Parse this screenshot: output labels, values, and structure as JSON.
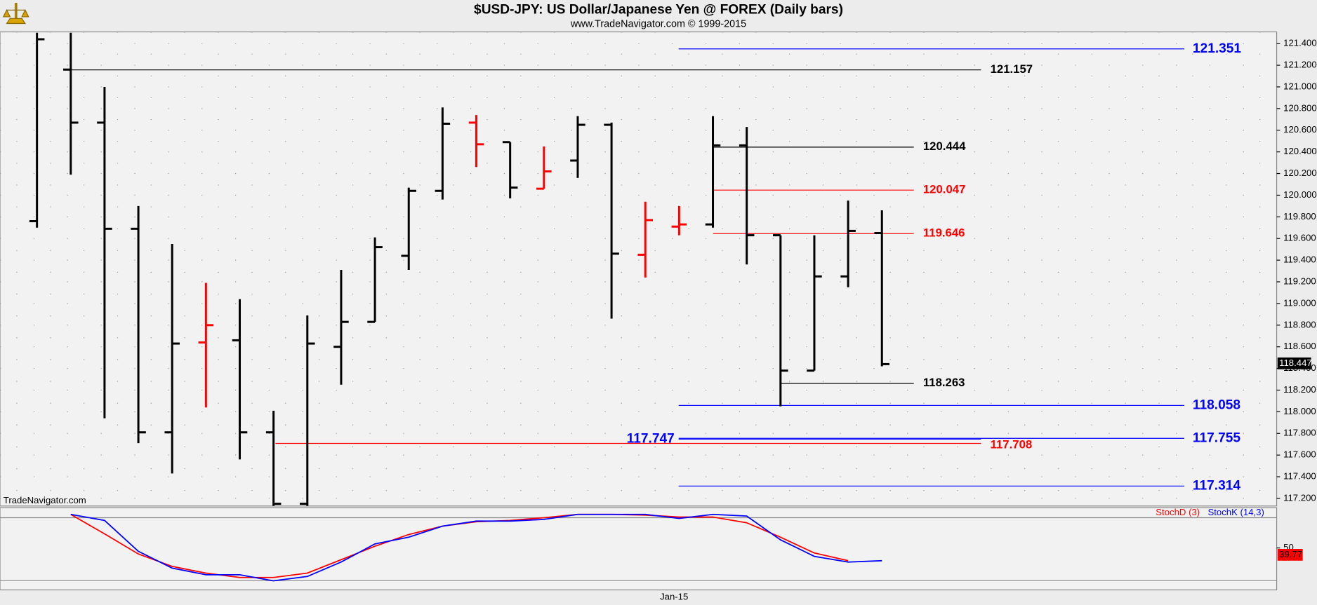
{
  "chart_data": {
    "type": "ohlc",
    "title": "$USD-JPY:  US Dollar/Japanese Yen @ FOREX  (Daily bars)",
    "subtitle": "www.TradeNavigator.com © 1999-2015",
    "watermark": "TradeNavigator.com",
    "categories": [
      null,
      null,
      null,
      null,
      null,
      null,
      null,
      null,
      null,
      null,
      null,
      null,
      null,
      null,
      null,
      null,
      null,
      null,
      null,
      "Jan-15",
      null,
      null,
      null,
      null,
      null,
      null
    ],
    "open": [
      119.76,
      121.16,
      120.67,
      119.69,
      117.81,
      118.64,
      118.66,
      117.81,
      117.15,
      118.6,
      118.83,
      119.44,
      120.04,
      120.67,
      120.49,
      120.06,
      120.32,
      120.65,
      119.45,
      119.71,
      119.73,
      120.46,
      119.63,
      118.38,
      119.25,
      119.65
    ],
    "high": [
      121.5,
      121.5,
      121.0,
      119.9,
      119.55,
      119.19,
      119.04,
      118.01,
      118.89,
      119.31,
      119.61,
      120.07,
      120.81,
      120.74,
      120.49,
      120.45,
      120.73,
      120.67,
      119.94,
      119.9,
      120.73,
      120.63,
      119.63,
      119.63,
      119.95,
      119.86
    ],
    "low": [
      119.7,
      120.19,
      117.94,
      117.71,
      117.43,
      118.04,
      117.56,
      117.13,
      117.13,
      118.25,
      118.83,
      119.31,
      119.96,
      120.26,
      119.97,
      120.06,
      120.16,
      118.86,
      119.24,
      119.63,
      119.7,
      119.36,
      118.05,
      118.38,
      119.15,
      118.42
    ],
    "close": [
      121.44,
      120.67,
      119.69,
      117.81,
      118.63,
      118.8,
      117.81,
      117.15,
      118.63,
      118.83,
      119.52,
      120.04,
      120.66,
      120.47,
      120.07,
      120.22,
      120.65,
      119.46,
      119.77,
      119.73,
      120.46,
      119.63,
      118.38,
      119.25,
      119.67,
      118.44
    ],
    "colors": [
      "#000000",
      "#000000",
      "#000000",
      "#000000",
      "#000000",
      "#ff0000",
      "#000000",
      "#000000",
      "#000000",
      "#000000",
      "#000000",
      "#000000",
      "#000000",
      "#ff0000",
      "#000000",
      "#ff0000",
      "#000000",
      "#000000",
      "#ff0000",
      "#ff0000",
      "#000000",
      "#000000",
      "#000000",
      "#000000",
      "#000000",
      "#000000"
    ],
    "ylim": [
      117.13,
      121.508
    ],
    "yticks": [
      {
        "value": 117.2,
        "label": "117.200"
      },
      {
        "value": 117.4,
        "label": "117.400"
      },
      {
        "value": 117.6,
        "label": "117.600"
      },
      {
        "value": 117.8,
        "label": "117.800"
      },
      {
        "value": 118.0,
        "label": "118.000"
      },
      {
        "value": 118.2,
        "label": "118.200"
      },
      {
        "value": 118.4,
        "label": "118.400"
      },
      {
        "value": 118.6,
        "label": "118.600"
      },
      {
        "value": 118.8,
        "label": "118.800"
      },
      {
        "value": 119.0,
        "label": "119.000"
      },
      {
        "value": 119.2,
        "label": "119.200"
      },
      {
        "value": 119.4,
        "label": "119.400"
      },
      {
        "value": 119.6,
        "label": "119.600"
      },
      {
        "value": 119.8,
        "label": "119.800"
      },
      {
        "value": 120.0,
        "label": "120.000"
      },
      {
        "value": 120.2,
        "label": "120.200"
      },
      {
        "value": 120.4,
        "label": "120.400"
      },
      {
        "value": 120.6,
        "label": "120.600"
      },
      {
        "value": 120.8,
        "label": "120.800"
      },
      {
        "value": 121.0,
        "label": "121.000"
      },
      {
        "value": 121.2,
        "label": "121.200"
      },
      {
        "value": 121.4,
        "label": "121.400"
      }
    ],
    "last_price": 118.447,
    "grid": true,
    "levels": [
      {
        "value": 121.351,
        "color": "#0000ff"
      },
      {
        "value": 121.157,
        "color": "#000000"
      },
      {
        "value": 120.444,
        "color": "#000000"
      },
      {
        "value": 120.047,
        "color": "#ff0000"
      },
      {
        "value": 119.646,
        "color": "#ff0000"
      },
      {
        "value": 118.263,
        "color": "#000000"
      },
      {
        "value": 118.058,
        "color": "#0000ff"
      },
      {
        "value": 117.755,
        "color": "#0000ff"
      },
      {
        "value": 117.747,
        "color": "#0000ff"
      },
      {
        "value": 117.708,
        "color": "#ff0000"
      },
      {
        "value": 117.314,
        "color": "#0000ff"
      }
    ],
    "indicator": {
      "type": "line",
      "ylim": [
        -12.5,
        110
      ],
      "yticks": [
        50
      ],
      "last_value": 39.77,
      "series": [
        {
          "name": "StochD (3)",
          "color": "#ff0000",
          "values": [
            null,
            100,
            71,
            41,
            22.5,
            12.5,
            6,
            6,
            12.5,
            32.5,
            52.5,
            70,
            82.5,
            89,
            91,
            95,
            100,
            100,
            99,
            96,
            96,
            87.5,
            66,
            42.5,
            31,
            null
          ]
        },
        {
          "name": "StochK (14,3)",
          "color": "#0000ff",
          "values": [
            null,
            100,
            91,
            45,
            20,
            10,
            10,
            1,
            7.5,
            29,
            56,
            66,
            82.5,
            90,
            90,
            92.5,
            100,
            100,
            100,
            94,
            100,
            97.5,
            62,
            37.5,
            29,
            31
          ]
        }
      ]
    }
  }
}
